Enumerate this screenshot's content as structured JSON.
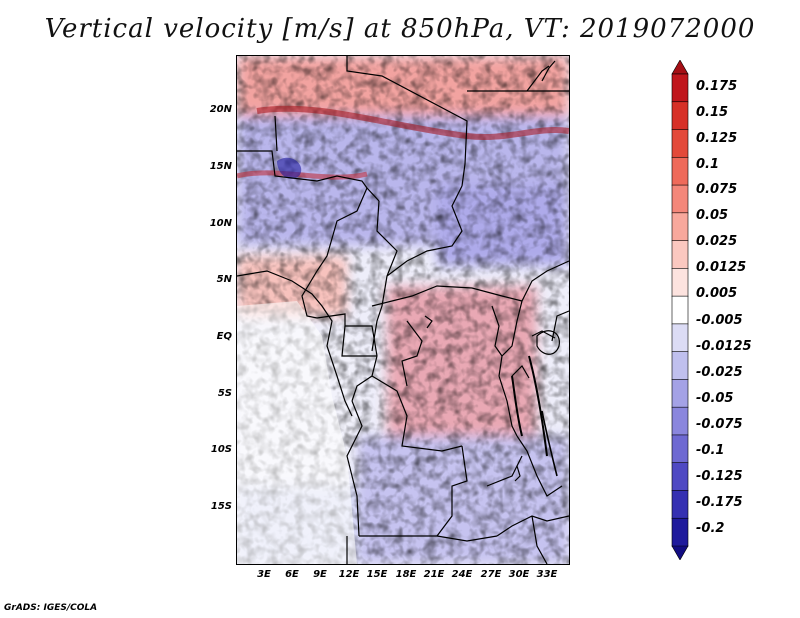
{
  "title": "Vertical velocity [m/s] at 850hPa, VT: 2019072000",
  "y_axis_labels": [
    "20N",
    "15N",
    "10N",
    "5N",
    "EQ",
    "5S",
    "10S",
    "15S"
  ],
  "y_axis_values": [
    20,
    15,
    10,
    5,
    0,
    -5,
    -10,
    -15
  ],
  "x_axis_labels": [
    "3E",
    "6E",
    "9E",
    "12E",
    "15E",
    "18E",
    "21E",
    "24E",
    "27E",
    "30E",
    "33E"
  ],
  "x_axis_values": [
    3,
    6,
    9,
    12,
    15,
    18,
    21,
    24,
    27,
    30,
    33
  ],
  "extent": {
    "lon_min": 0,
    "lon_max": 35,
    "lat_min": -20,
    "lat_max": 25
  },
  "colorbar": {
    "levels": [
      "0.175",
      "0.15",
      "0.125",
      "0.1",
      "0.075",
      "0.05",
      "0.025",
      "0.0125",
      "0.005",
      "-0.005",
      "-0.0125",
      "-0.025",
      "-0.05",
      "-0.075",
      "-0.1",
      "-0.125",
      "-0.175",
      "-0.2"
    ],
    "colors": [
      "#a50f15",
      "#c0161c",
      "#d73027",
      "#e34a3a",
      "#ef6a5a",
      "#f4877a",
      "#f8a89c",
      "#fbc8c0",
      "#fde3df",
      "#ffffff",
      "#dcdcf5",
      "#c0c0ee",
      "#a4a2e6",
      "#8a86dd",
      "#6e69d2",
      "#4f49c3",
      "#3530b2",
      "#1f1a9c",
      "#120c82"
    ]
  },
  "credit": "GrADS: IGES/COLA"
}
